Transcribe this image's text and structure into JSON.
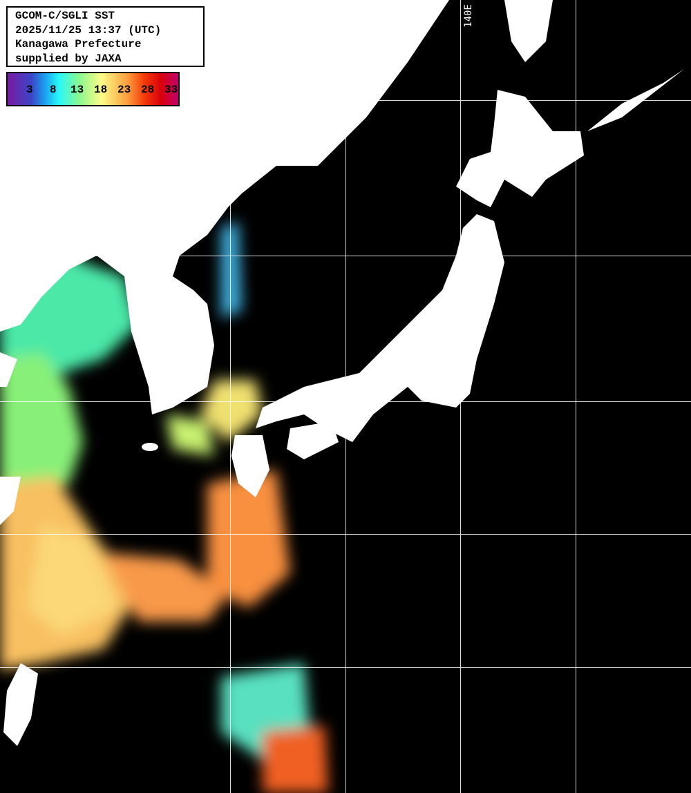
{
  "header": {
    "lines": [
      "GCOM-C/SGLI SST",
      "2025/11/25 13:37 (UTC)",
      "Kanagawa Prefecture",
      "supplied by JAXA"
    ]
  },
  "legend": {
    "ticks": [
      "3",
      "8",
      "13",
      "18",
      "23",
      "28",
      "33"
    ],
    "colors": [
      "#7a1aa0",
      "#3a46c8",
      "#28f8f8",
      "#8cf890",
      "#fcfc88",
      "#fca040",
      "#f43c08",
      "#d8000c",
      "#c0006c"
    ]
  },
  "grid": {
    "longitude_label": "140E",
    "line_color": "#ffffff"
  },
  "colors": {
    "land": "#ffffff",
    "no_data": "#000000"
  }
}
